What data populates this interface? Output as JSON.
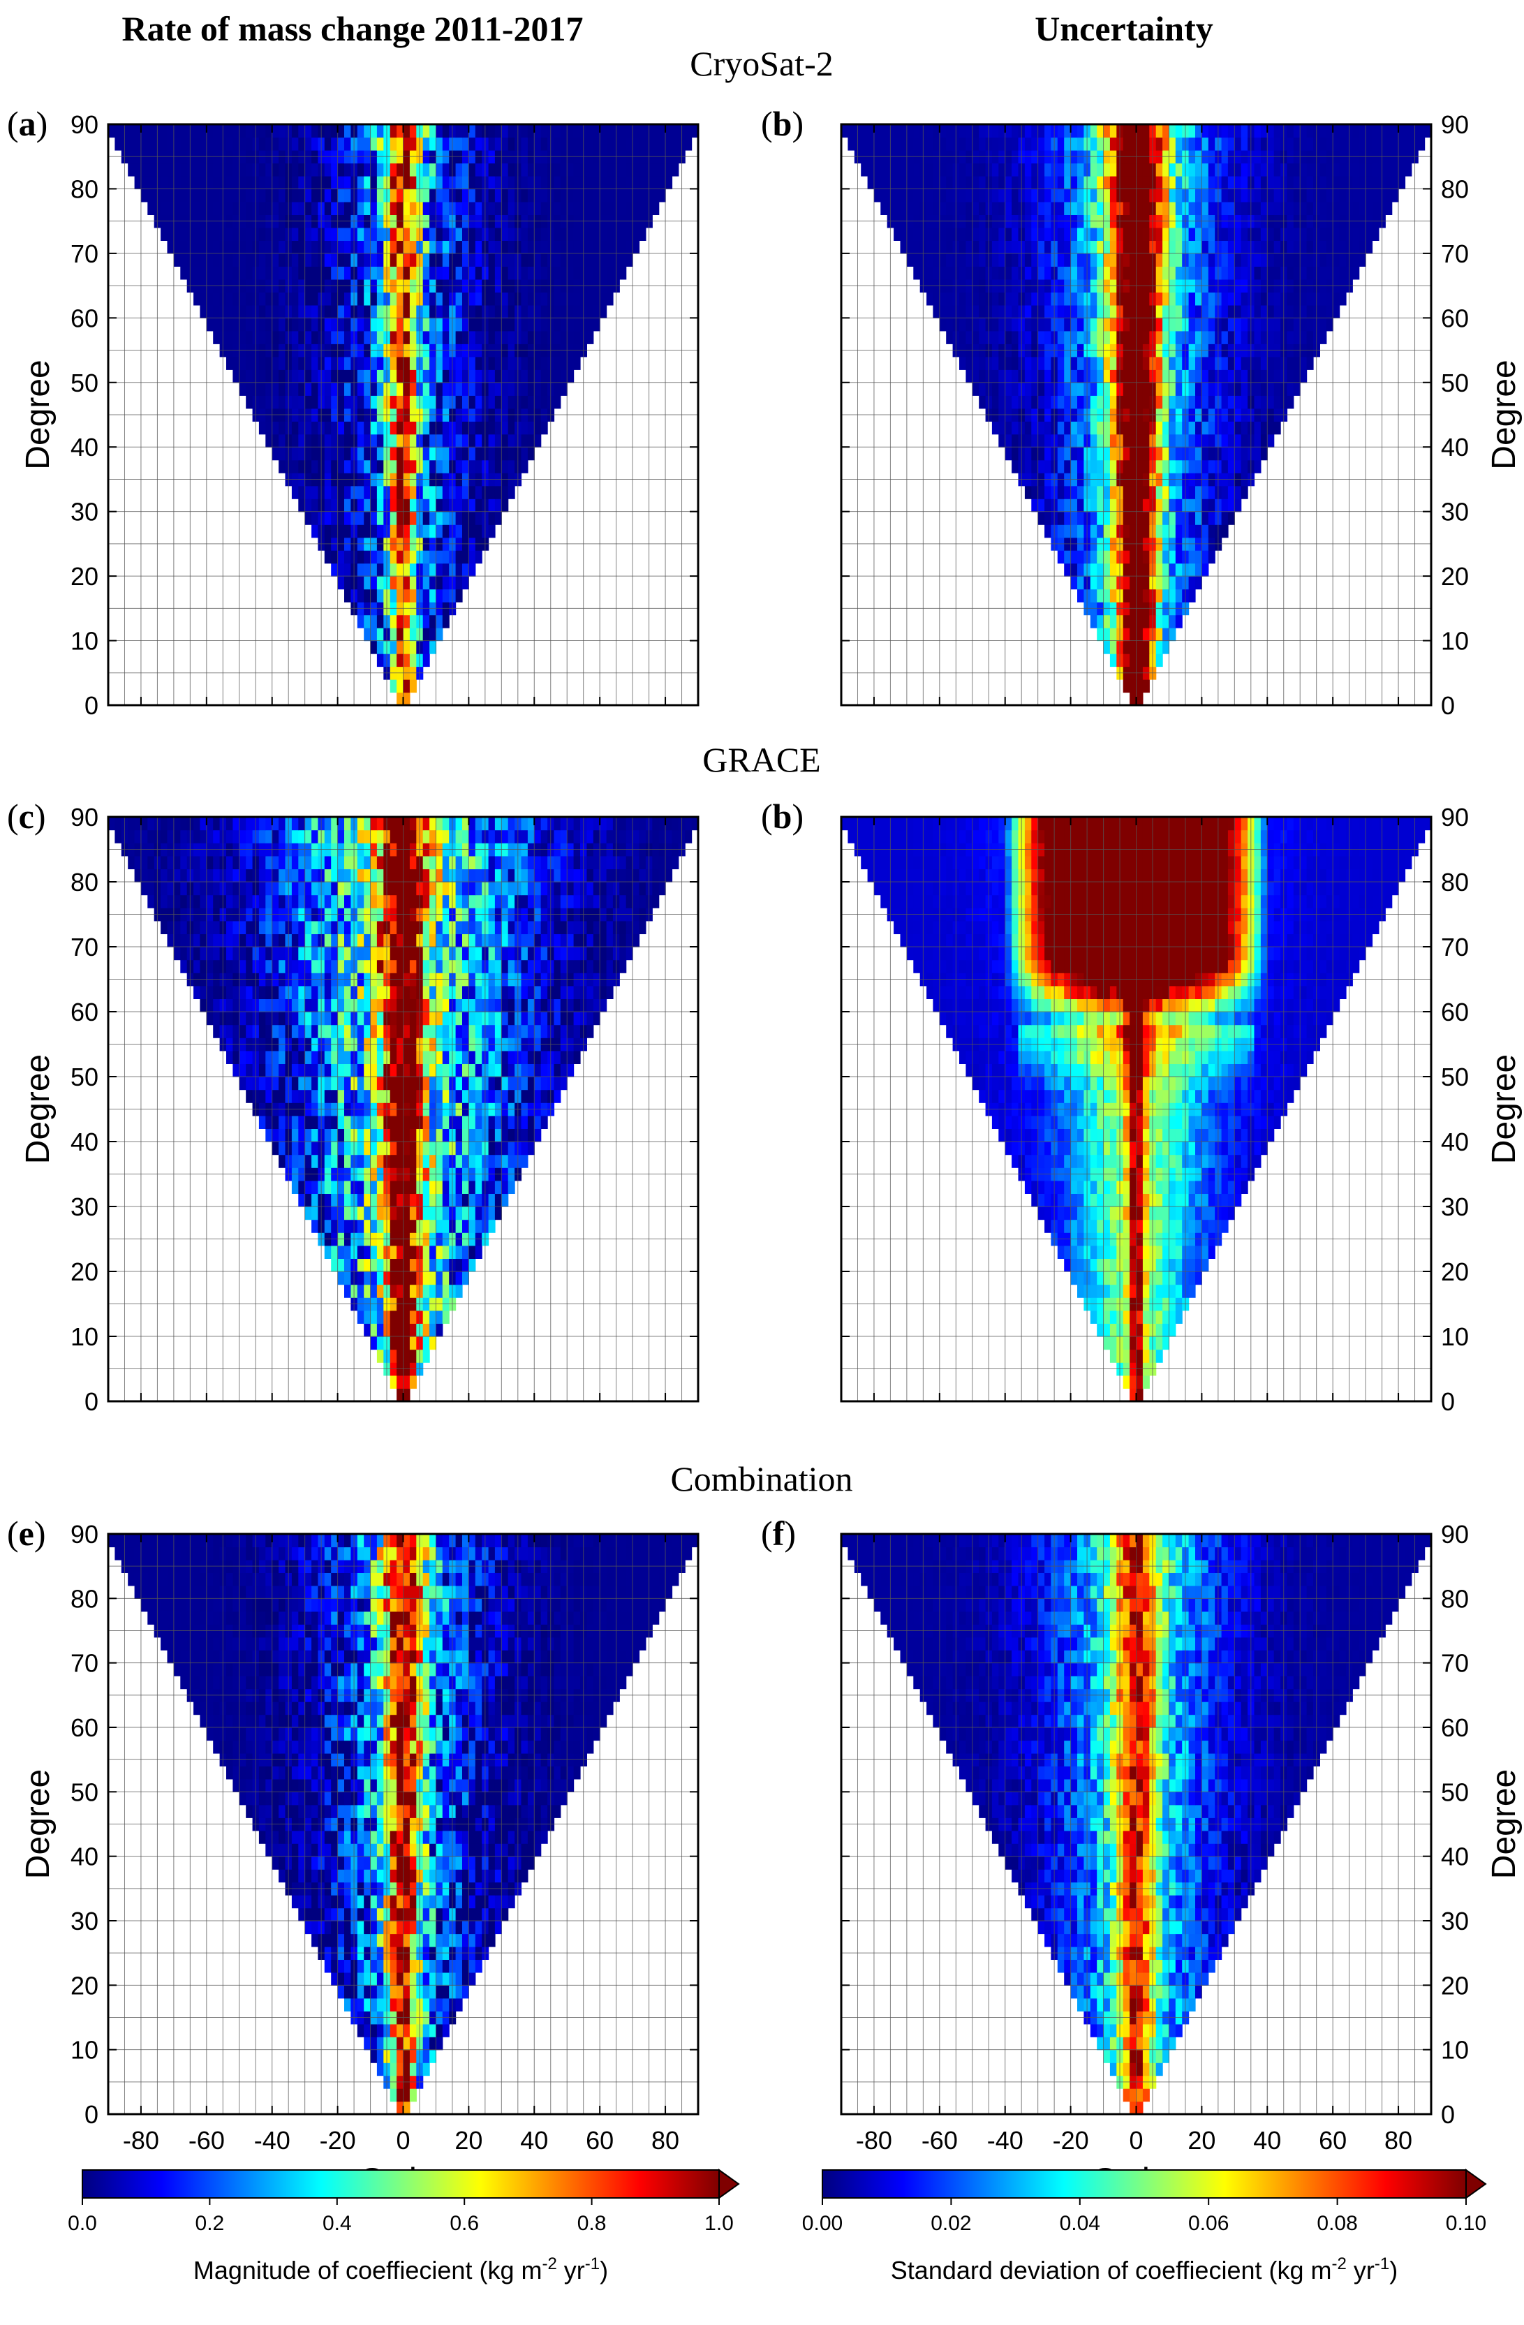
{
  "column_titles": [
    "Rate of mass change 2011-2017",
    "Uncertainty"
  ],
  "row_titles": [
    "CryoSat-2",
    "GRACE",
    "Combination"
  ],
  "panel_letters": [
    "a",
    "b",
    "c",
    "b",
    "e",
    "f"
  ],
  "axis": {
    "degree_label": "Degree",
    "order_label": "Order"
  },
  "colorbars": [
    {
      "ticks": [
        "0.0",
        "0.2",
        "0.4",
        "0.6",
        "0.8",
        "1.0"
      ],
      "label_main": "Magnitude of coeffiecient (kg m",
      "label_sup1": "-2",
      "label_mid": " yr",
      "label_sup2": "-1",
      "label_end": ")"
    },
    {
      "ticks": [
        "0.00",
        "0.02",
        "0.04",
        "0.06",
        "0.08",
        "0.10"
      ],
      "label_main": "Standard deviation of coeffiecient (kg m",
      "label_sup1": "-2",
      "label_mid": " yr",
      "label_sup2": "-1",
      "label_end": ")"
    }
  ],
  "colormap": [
    "#00007f",
    "#0000ff",
    "#007fff",
    "#00ffff",
    "#7fff7f",
    "#ffff00",
    "#ff7f00",
    "#ff0000",
    "#7f0000"
  ],
  "chart_data": [
    {
      "type": "heatmap",
      "panel": "a",
      "dataset": "CryoSat-2",
      "quantity": "Rate of mass change 2011-2017",
      "xlabel": "Order",
      "ylabel": "Degree",
      "xlim": [
        -90,
        90
      ],
      "ylim": [
        0,
        90
      ],
      "xticks": [
        -80,
        -60,
        -40,
        -20,
        0,
        20,
        40,
        60,
        80
      ],
      "yticks": [
        0,
        10,
        20,
        30,
        40,
        50,
        60,
        70,
        80,
        90
      ],
      "grid": true,
      "color_range": [
        0.0,
        1.0
      ],
      "pattern": {
        "background": 0.02,
        "core_peak": 0.72,
        "core_width": 6,
        "halo": 0.18,
        "halo_width": 20,
        "deg_min_scale": 0.55,
        "cap_boost": 0.0,
        "cap_start": 90,
        "cap_width": 0,
        "texture": 0.55,
        "seed": 11
      }
    },
    {
      "type": "heatmap",
      "panel": "b",
      "dataset": "CryoSat-2",
      "quantity": "Uncertainty",
      "xlabel": "",
      "ylabel": "Degree",
      "xlim": [
        -90,
        90
      ],
      "ylim": [
        0,
        90
      ],
      "xticks": [
        -80,
        -60,
        -40,
        -20,
        0,
        20,
        40,
        60,
        80
      ],
      "yticks": [
        0,
        10,
        20,
        30,
        40,
        50,
        60,
        70,
        80,
        90
      ],
      "grid": true,
      "color_range": [
        0.0,
        0.1
      ],
      "pattern": {
        "background": 0.03,
        "core_peak": 0.85,
        "core_width": 9,
        "halo": 0.35,
        "halo_width": 26,
        "deg_min_scale": 0.6,
        "cap_boost": 0.0,
        "cap_start": 90,
        "cap_width": 0,
        "texture": 0.35,
        "seed": 23
      }
    },
    {
      "type": "heatmap",
      "panel": "c",
      "dataset": "GRACE",
      "quantity": "Rate of mass change 2011-2017",
      "xlabel": "",
      "ylabel": "Degree",
      "xlim": [
        -90,
        90
      ],
      "ylim": [
        0,
        90
      ],
      "xticks": [
        -80,
        -60,
        -40,
        -20,
        0,
        20,
        40,
        60,
        80
      ],
      "yticks": [
        0,
        10,
        20,
        30,
        40,
        50,
        60,
        70,
        80,
        90
      ],
      "grid": true,
      "color_range": [
        0.0,
        1.0
      ],
      "pattern": {
        "background": 0.02,
        "core_peak": 0.78,
        "core_width": 8,
        "halo": 0.42,
        "halo_width": 38,
        "deg_min_scale": 0.45,
        "cap_boost": 0.0,
        "cap_start": 90,
        "cap_width": 0,
        "texture": 0.6,
        "seed": 37
      }
    },
    {
      "type": "heatmap",
      "panel": "b",
      "dataset": "GRACE",
      "quantity": "Uncertainty",
      "xlabel": "",
      "ylabel": "Degree",
      "xlim": [
        -90,
        90
      ],
      "ylim": [
        0,
        90
      ],
      "xticks": [
        -80,
        -60,
        -40,
        -20,
        0,
        20,
        40,
        60,
        80
      ],
      "yticks": [
        0,
        10,
        20,
        30,
        40,
        50,
        60,
        70,
        80,
        90
      ],
      "grid": true,
      "color_range": [
        0.0,
        0.1
      ],
      "pattern": {
        "background": 0.08,
        "core_peak": 0.5,
        "core_width": 4,
        "halo": 0.45,
        "halo_width": 30,
        "deg_min_scale": 0.45,
        "cap_boost": 1.0,
        "cap_start": 58,
        "cap_width": 40,
        "texture": 0.2,
        "seed": 41
      }
    },
    {
      "type": "heatmap",
      "panel": "e",
      "dataset": "Combination",
      "quantity": "Rate of mass change 2011-2017",
      "xlabel": "Order",
      "ylabel": "Degree",
      "xlim": [
        -90,
        90
      ],
      "ylim": [
        0,
        90
      ],
      "xticks": [
        -80,
        -60,
        -40,
        -20,
        0,
        20,
        40,
        60,
        80
      ],
      "yticks": [
        0,
        10,
        20,
        30,
        40,
        50,
        60,
        70,
        80,
        90
      ],
      "grid": true,
      "color_range": [
        0.0,
        1.0
      ],
      "pattern": {
        "background": 0.02,
        "core_peak": 0.72,
        "core_width": 7,
        "halo": 0.25,
        "halo_width": 24,
        "deg_min_scale": 0.55,
        "cap_boost": 0.0,
        "cap_start": 90,
        "cap_width": 0,
        "texture": 0.55,
        "seed": 53
      }
    },
    {
      "type": "heatmap",
      "panel": "f",
      "dataset": "Combination",
      "quantity": "Uncertainty",
      "xlabel": "Order",
      "ylabel": "Degree",
      "xlim": [
        -90,
        90
      ],
      "ylim": [
        0,
        90
      ],
      "xticks": [
        -80,
        -60,
        -40,
        -20,
        0,
        20,
        40,
        60,
        80
      ],
      "yticks": [
        0,
        10,
        20,
        30,
        40,
        50,
        60,
        70,
        80,
        90
      ],
      "grid": true,
      "color_range": [
        0.0,
        0.1
      ],
      "pattern": {
        "background": 0.03,
        "core_peak": 0.55,
        "core_width": 8,
        "halo": 0.32,
        "halo_width": 28,
        "deg_min_scale": 0.65,
        "cap_boost": 0.0,
        "cap_start": 90,
        "cap_width": 0,
        "texture": 0.3,
        "seed": 67
      }
    }
  ]
}
